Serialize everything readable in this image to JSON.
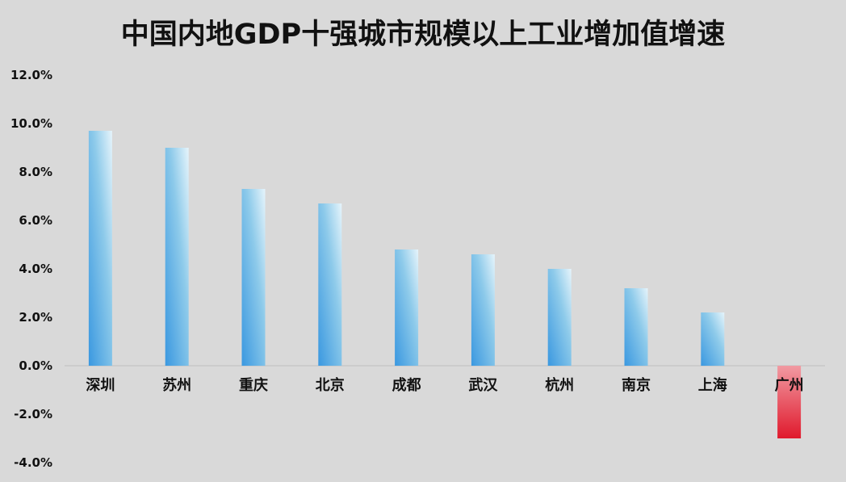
{
  "chart_data": {
    "type": "bar",
    "title": "中国内地GDP十强城市规模以上工业增加值增速",
    "categories": [
      "深圳",
      "苏州",
      "重庆",
      "北京",
      "成都",
      "武汉",
      "杭州",
      "南京",
      "上海",
      "广州"
    ],
    "values": [
      9.7,
      9.0,
      7.3,
      6.7,
      4.8,
      4.6,
      4.0,
      3.2,
      2.2,
      -3.0
    ],
    "y_ticks": [
      "12.0%",
      "10.0%",
      "8.0%",
      "6.0%",
      "4.0%",
      "2.0%",
      "0.0%",
      "-2.0%",
      "-4.0%"
    ],
    "ylim": [
      -4,
      12
    ],
    "grid": false,
    "colors": {
      "positive": "#3a9ae0",
      "negative": "#e01a2c",
      "background": "#d9d9d9"
    }
  }
}
